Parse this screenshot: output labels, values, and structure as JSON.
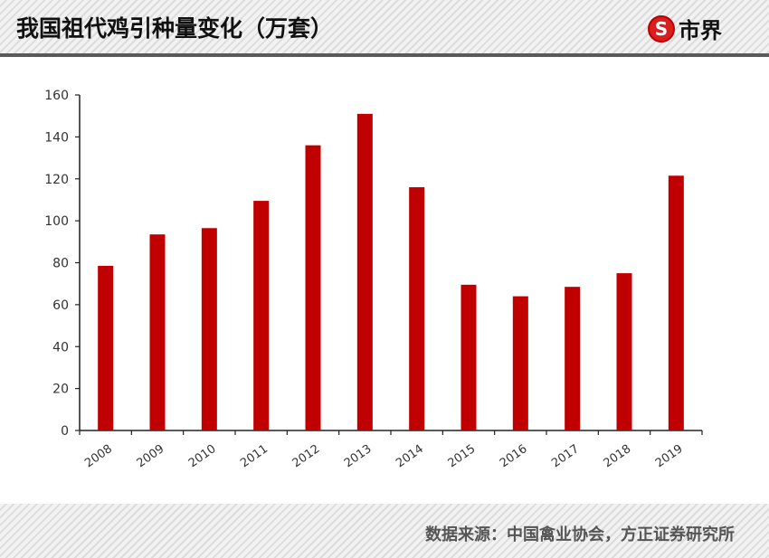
{
  "header": {
    "title": "我国祖代鸡引种量变化（万套）",
    "logo_text": "市界",
    "logo_icon": "s-circle-logo"
  },
  "footer": {
    "source": "数据来源：中国禽业协会，方正证券研究所"
  },
  "colors": {
    "bar": "#c00000"
  },
  "chart_data": {
    "type": "bar",
    "title": "我国祖代鸡引种量变化（万套）",
    "categories": [
      "2008",
      "2009",
      "2010",
      "2011",
      "2012",
      "2013",
      "2014",
      "2015",
      "2016",
      "2017",
      "2018",
      "2019"
    ],
    "values": [
      78.5,
      93.5,
      96.5,
      109.5,
      136,
      151,
      116,
      69.5,
      64,
      68.5,
      75,
      121.5
    ],
    "ylim": [
      0,
      160
    ],
    "yticks": [
      0,
      20,
      40,
      60,
      80,
      100,
      120,
      140,
      160
    ],
    "xlabel": "",
    "ylabel": "",
    "grid": false,
    "legend": "none"
  }
}
